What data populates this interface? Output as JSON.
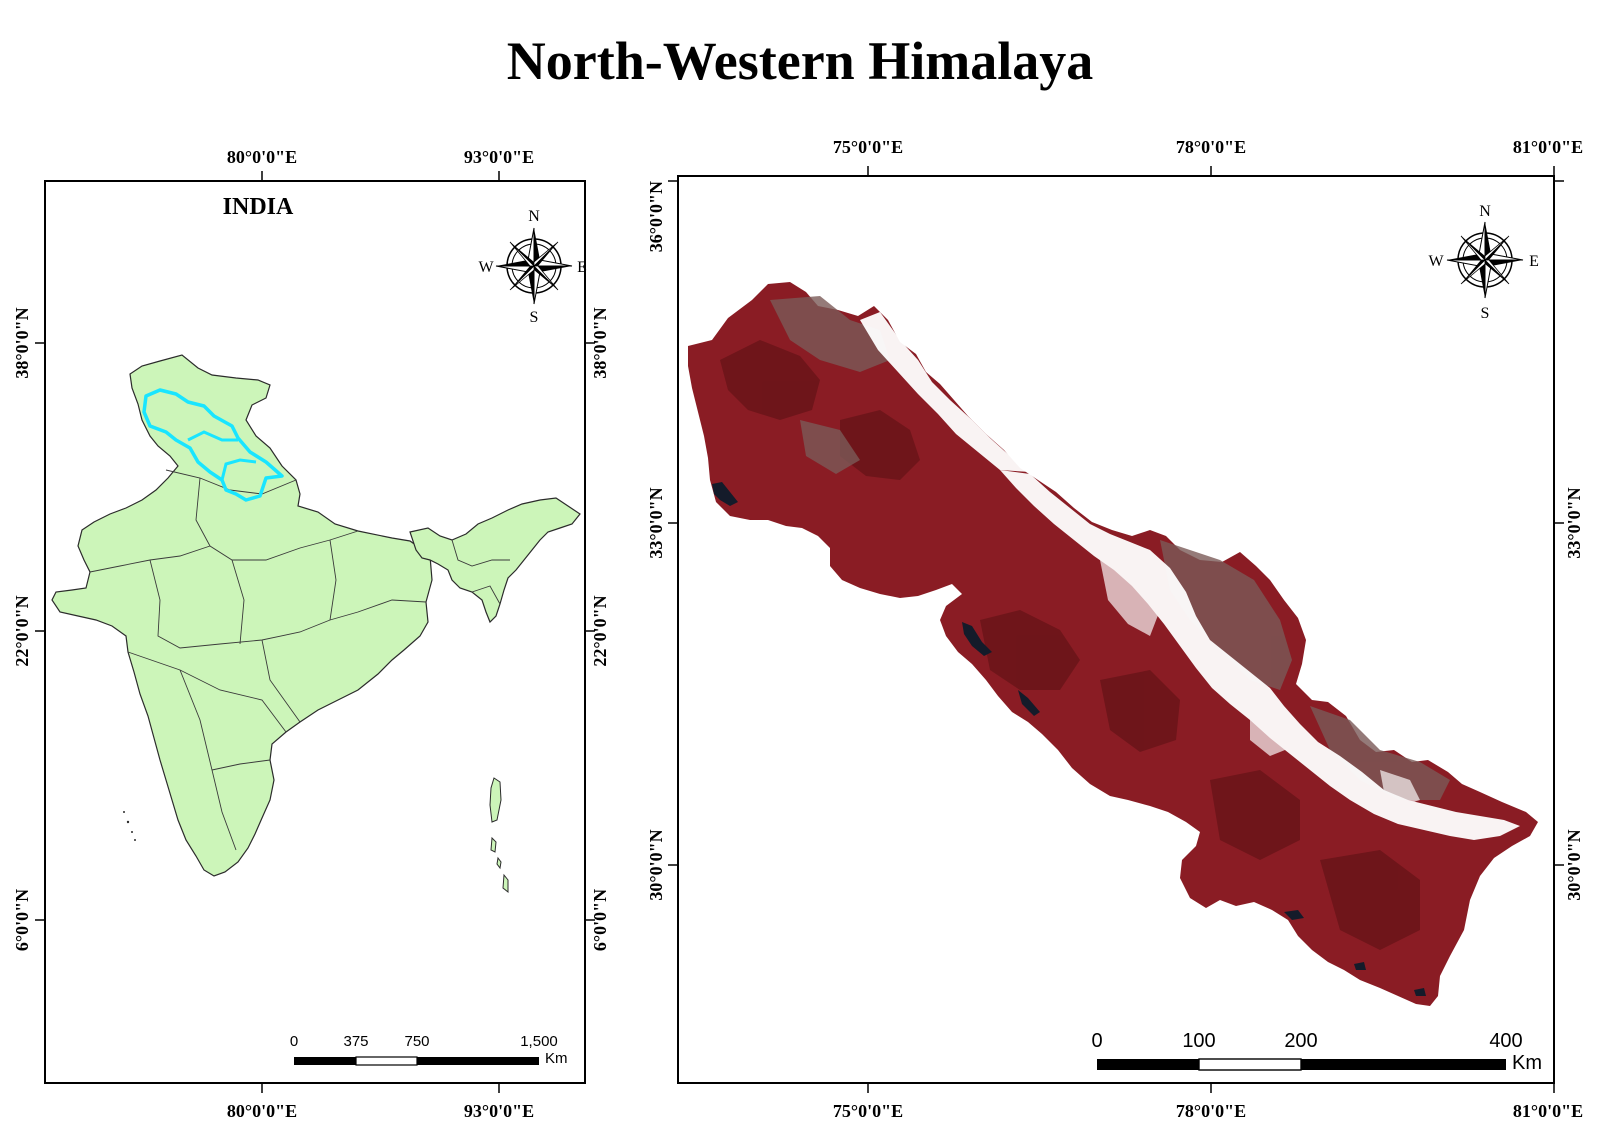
{
  "title": "North-Western Himalaya",
  "left_panel": {
    "label": "INDIA",
    "top_lon_labels": [
      "80°0'0\"E",
      "93°0'0\"E"
    ],
    "bottom_lon_labels": [
      "80°0'0\"E",
      "93°0'0\"E"
    ],
    "left_lat_labels": [
      "38°0'0\"N",
      "22°0'0\"N",
      "6°0'0\"N"
    ],
    "right_lat_labels": [
      "38°0'0\"N",
      "22°0'0\"N",
      "6°0'0\"N"
    ],
    "compass": {
      "n": "N",
      "s": "S",
      "e": "E",
      "w": "W"
    },
    "scale_bar": {
      "ticks": [
        "0",
        "375",
        "750",
        "1,500"
      ],
      "unit": "Km"
    },
    "colors": {
      "land": "#ccf5b9",
      "highlight": "#19e5ff",
      "border": "#3a3a3a"
    }
  },
  "right_panel": {
    "top_lon_labels": [
      "75°0'0\"E",
      "78°0'0\"E",
      "81°0'0\"E"
    ],
    "bottom_lon_labels": [
      "75°0'0\"E",
      "78°0'0\"E",
      "81°0'0\"E"
    ],
    "left_lat_labels": [
      "36°0'0\"N",
      "33°0'0\"N",
      "30°0'0\"N"
    ],
    "right_lat_labels": [
      "33°0'0\"N",
      "30°0'0\"N"
    ],
    "compass": {
      "n": "N",
      "s": "S",
      "e": "E",
      "w": "W"
    },
    "scale_bar": {
      "ticks": [
        "0",
        "100",
        "200",
        "400"
      ],
      "unit": "Km"
    },
    "colors": {
      "terrain": "#8a1c24",
      "terrain_dark": "#5e1218",
      "snow": "#ffffff",
      "rock": "#7a6a63"
    }
  }
}
